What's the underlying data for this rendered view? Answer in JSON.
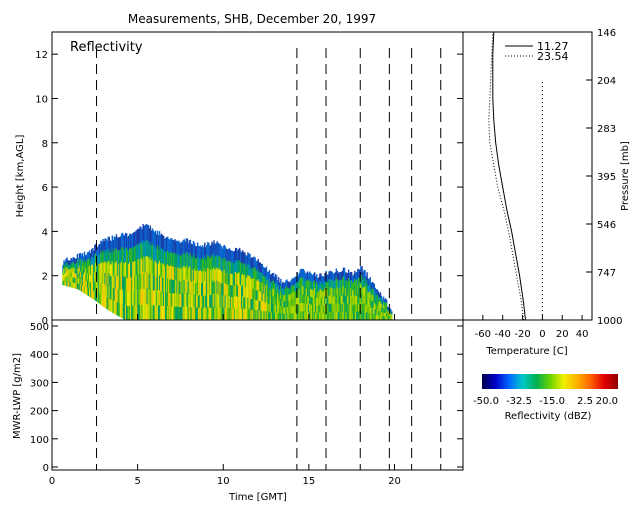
{
  "title": "Measurements, SHB, December 20, 1997",
  "chart_data": [
    {
      "id": "reflectivity",
      "type": "heatmap",
      "label": "Reflectivity",
      "ylabel": "Height [km,AGL]",
      "ylim": [
        0,
        13
      ],
      "yticks": [
        0,
        2,
        4,
        6,
        8,
        10,
        12
      ],
      "xlim": [
        0,
        24
      ],
      "dashed_times": [
        2.6,
        14.3,
        16.0,
        18.0,
        19.7,
        21.0,
        22.7
      ],
      "echo_top_km": [
        {
          "t": 0.6,
          "top": 2.6
        },
        {
          "t": 1.0,
          "top": 2.8
        },
        {
          "t": 1.5,
          "top": 2.9
        },
        {
          "t": 2.0,
          "top": 3.0
        },
        {
          "t": 2.5,
          "top": 3.3
        },
        {
          "t": 3.0,
          "top": 3.6
        },
        {
          "t": 3.5,
          "top": 3.7
        },
        {
          "t": 4.0,
          "top": 3.9
        },
        {
          "t": 4.5,
          "top": 3.8
        },
        {
          "t": 5.0,
          "top": 4.1
        },
        {
          "t": 5.5,
          "top": 4.3
        },
        {
          "t": 6.0,
          "top": 4.0
        },
        {
          "t": 6.5,
          "top": 3.8
        },
        {
          "t": 7.0,
          "top": 3.6
        },
        {
          "t": 7.5,
          "top": 3.6
        },
        {
          "t": 8.0,
          "top": 3.6
        },
        {
          "t": 8.5,
          "top": 3.4
        },
        {
          "t": 9.0,
          "top": 3.4
        },
        {
          "t": 9.5,
          "top": 3.5
        },
        {
          "t": 10.0,
          "top": 3.3
        },
        {
          "t": 10.5,
          "top": 3.1
        },
        {
          "t": 11.0,
          "top": 3.2
        },
        {
          "t": 11.5,
          "top": 2.9
        },
        {
          "t": 12.0,
          "top": 2.7
        },
        {
          "t": 12.5,
          "top": 2.3
        },
        {
          "t": 13.0,
          "top": 2.0
        },
        {
          "t": 13.5,
          "top": 1.6
        },
        {
          "t": 14.0,
          "top": 1.9
        },
        {
          "t": 14.5,
          "top": 2.2
        },
        {
          "t": 15.0,
          "top": 2.2
        },
        {
          "t": 15.5,
          "top": 2.0
        },
        {
          "t": 16.0,
          "top": 2.1
        },
        {
          "t": 16.5,
          "top": 2.2
        },
        {
          "t": 17.0,
          "top": 2.3
        },
        {
          "t": 17.5,
          "top": 2.1
        },
        {
          "t": 18.0,
          "top": 2.4
        },
        {
          "t": 18.5,
          "top": 1.9
        },
        {
          "t": 19.0,
          "top": 1.3
        },
        {
          "t": 19.5,
          "top": 0.8
        },
        {
          "t": 19.8,
          "top": 0.3
        }
      ],
      "echo_base_km": [
        {
          "t": 0.6,
          "base": 1.6
        },
        {
          "t": 1.5,
          "base": 1.4
        },
        {
          "t": 2.5,
          "base": 0.9
        },
        {
          "t": 3.0,
          "base": 0.6
        },
        {
          "t": 3.6,
          "base": 0.3
        },
        {
          "t": 4.3,
          "base": 0.0
        },
        {
          "t": 19.8,
          "base": 0.0
        }
      ]
    },
    {
      "id": "lwp",
      "type": "line",
      "ylabel": "MWR-LWP [g/m2]",
      "ylim": [
        0,
        500
      ],
      "yticks": [
        0,
        100,
        200,
        300,
        400,
        500
      ],
      "xlabel": "Time [GMT]",
      "xlim": [
        0,
        24
      ],
      "xticks": [
        0,
        5,
        10,
        15,
        20
      ],
      "dashed_times": [
        2.6,
        14.3,
        16.0,
        18.0,
        19.7,
        21.0,
        22.7
      ],
      "series": []
    },
    {
      "id": "temperature",
      "type": "line",
      "xlabel": "Temperature [C]",
      "xticks": [
        -60,
        -40,
        -20,
        0,
        20,
        40
      ],
      "xlim": [
        -80,
        50
      ],
      "ylabel_right": "Pressure [mb]",
      "pressure_labels": [
        "146",
        "204",
        "283",
        "395",
        "546",
        "747",
        "1000"
      ],
      "series": [
        {
          "name": "11.27",
          "style": "solid",
          "points": [
            {
              "h": 0.0,
              "T": -17
            },
            {
              "h": 0.8,
              "T": -19
            },
            {
              "h": 2.0,
              "T": -23
            },
            {
              "h": 3.0,
              "T": -27
            },
            {
              "h": 4.0,
              "T": -31
            },
            {
              "h": 5.0,
              "T": -36
            },
            {
              "h": 6.0,
              "T": -40
            },
            {
              "h": 7.0,
              "T": -44
            },
            {
              "h": 8.0,
              "T": -47
            },
            {
              "h": 9.0,
              "T": -49
            },
            {
              "h": 10.0,
              "T": -50
            },
            {
              "h": 11.0,
              "T": -50
            },
            {
              "h": 12.0,
              "T": -50
            },
            {
              "h": 13.0,
              "T": -49
            }
          ]
        },
        {
          "name": "23.54",
          "style": "dotted",
          "points": [
            {
              "h": 0.0,
              "T": -19
            },
            {
              "h": 0.8,
              "T": -21
            },
            {
              "h": 2.0,
              "T": -26
            },
            {
              "h": 3.0,
              "T": -30
            },
            {
              "h": 4.0,
              "T": -34
            },
            {
              "h": 5.0,
              "T": -39
            },
            {
              "h": 6.0,
              "T": -45
            },
            {
              "h": 7.0,
              "T": -49
            },
            {
              "h": 8.0,
              "T": -53
            },
            {
              "h": 9.0,
              "T": -54
            },
            {
              "h": 10.0,
              "T": -53
            },
            {
              "h": 11.0,
              "T": -52
            },
            {
              "h": 12.0,
              "T": -51
            },
            {
              "h": 13.0,
              "T": -50
            }
          ]
        }
      ],
      "reference_T": 0
    },
    {
      "id": "colorbar",
      "type": "heatmap",
      "label": "Reflectivity (dBZ)",
      "tick_labels": [
        "-50.0",
        "-32.5",
        "-15.0",
        "2.5",
        "20.0"
      ],
      "range": [
        -50,
        20
      ],
      "colors": [
        "#00004a",
        "#0000c8",
        "#0068ff",
        "#00c8c8",
        "#00b050",
        "#6ad200",
        "#f0f000",
        "#ffb000",
        "#ff6000",
        "#e00000",
        "#900000"
      ]
    }
  ]
}
